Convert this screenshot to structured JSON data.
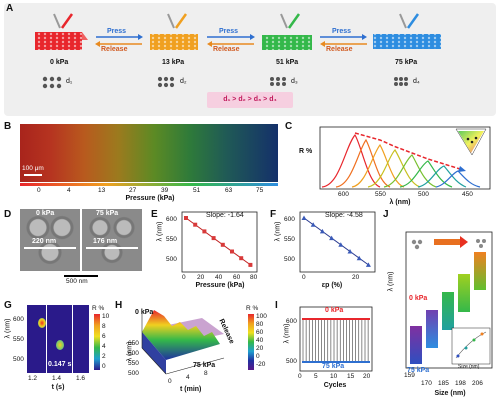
{
  "panel_a": {
    "label": "A",
    "pressures": [
      "0 kPa",
      "13 kPa",
      "51 kPa",
      "75 kPa"
    ],
    "distances": [
      "d₁",
      "d₂",
      "d₃",
      "d₄"
    ],
    "press": "Press",
    "release": "Release",
    "relation": "d₁ > d₂ > d₃ > d₄",
    "colors": [
      "#e8262c",
      "#f0a020",
      "#34b84a",
      "#2e8de0"
    ]
  },
  "panel_b": {
    "label": "B",
    "scale_bar": "100 μm",
    "ticks": [
      "0",
      "4",
      "13",
      "27",
      "39",
      "51",
      "63",
      "75"
    ],
    "xlabel": "Pressure (kPa)"
  },
  "panel_c": {
    "label": "C",
    "ylabel": "R %",
    "xlabel": "λ (nm)",
    "xticks": [
      "600",
      "550",
      "500",
      "450"
    ],
    "inset_ticks": [
      "0.0",
      "0.2",
      "0.4",
      "0.6",
      "0.8"
    ]
  },
  "panel_d": {
    "label": "D",
    "left_title": "0 kPa",
    "right_title": "75 kPa",
    "left_size": "220 nm",
    "right_size": "176 nm",
    "scale_bar": "500 nm"
  },
  "panel_e": {
    "label": "E",
    "slope": "Slope: -1.64",
    "ylabel": "λ (nm)",
    "xlabel": "Pressure (kPa)",
    "yticks": [
      "600",
      "550",
      "500"
    ],
    "xticks": [
      "0",
      "20",
      "40",
      "60",
      "80"
    ]
  },
  "panel_f": {
    "label": "F",
    "slope": "Slope: -4.58",
    "ylabel": "λ (nm)",
    "xlabel": "εp (%)",
    "yticks": [
      "600",
      "550",
      "500"
    ],
    "xticks": [
      "0",
      "20"
    ]
  },
  "panel_g": {
    "label": "G",
    "ylabel": "λ (nm)",
    "yticks": [
      "600",
      "550",
      "500"
    ],
    "xticks": [
      "1.2",
      "1.4",
      "1.6"
    ],
    "xlabel": "t (s)",
    "time_annotation": "0.147 s",
    "colorbar_title": "R %",
    "colorbar_ticks": [
      "10",
      "8",
      "6",
      "4",
      "2",
      "0"
    ]
  },
  "panel_h": {
    "label": "H",
    "start": "0 kPa",
    "end": "75 kPa",
    "release": "Release",
    "ylabel": "λ (nm)",
    "yticks": [
      "650",
      "600",
      "550",
      "500"
    ],
    "xticks": [
      "0",
      "4",
      "8"
    ],
    "xlabel": "t (min)",
    "colorbar_title": "R %",
    "colorbar_ticks": [
      "100",
      "80",
      "60",
      "40",
      "20",
      "0",
      "-20"
    ]
  },
  "panel_i": {
    "label": "I",
    "top_label": "0 kPa",
    "bottom_label": "75 kPa",
    "ylabel": "λ (nm)",
    "yticks": [
      "600",
      "500"
    ],
    "xticks": [
      "0",
      "5",
      "10",
      "15",
      "20"
    ],
    "xlabel": "Cycles"
  },
  "panel_j": {
    "label": "J",
    "ylabel": "λ (nm)",
    "top_label": "0 kPa",
    "bottom_label": "75 kPa",
    "xticks": [
      "159",
      "170",
      "185",
      "198",
      "206"
    ],
    "xlabel": "Size (nm)",
    "inset_xlabel": "Size (nm)",
    "inset_xticks": [
      "160",
      "180",
      "200"
    ]
  }
}
